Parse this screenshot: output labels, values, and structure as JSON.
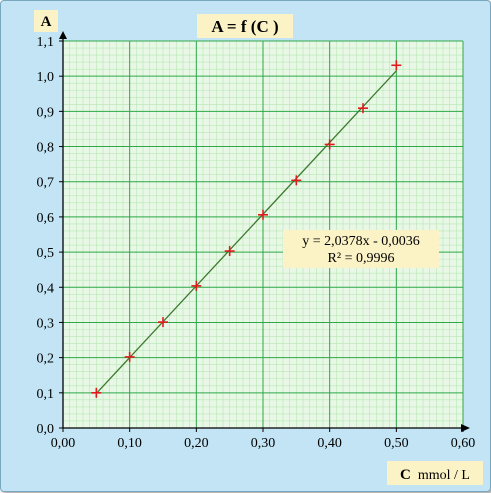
{
  "chart_data": {
    "type": "scatter",
    "title": "A = f (C )",
    "ylabel": "A",
    "xlabel_bold": "C",
    "xlabel_unit": "mmol / L",
    "xlim": [
      0.0,
      0.6
    ],
    "ylim": [
      0.0,
      1.1
    ],
    "x_ticks": [
      "0,00",
      "0,10",
      "0,20",
      "0,30",
      "0,40",
      "0,50",
      "0,60"
    ],
    "y_ticks": [
      "0,0",
      "0,1",
      "0,2",
      "0,3",
      "0,4",
      "0,5",
      "0,6",
      "0,7",
      "0,8",
      "0,9",
      "1,0",
      "1,1"
    ],
    "grid": true,
    "series": [
      {
        "x": [
          0.05,
          0.1,
          0.15,
          0.2,
          0.25,
          0.3,
          0.35,
          0.4,
          0.45,
          0.5
        ],
        "y": [
          0.1,
          0.202,
          0.301,
          0.404,
          0.503,
          0.606,
          0.704,
          0.806,
          0.909,
          1.031
        ]
      }
    ],
    "trendline": {
      "slope": 2.0378,
      "intercept": -0.0036,
      "x_range": [
        0.05,
        0.5
      ],
      "equation": "y = 2,0378x - 0,0036",
      "r2": "R² = 0,9996"
    },
    "colors": {
      "marker": "#e01b1b",
      "trendline": "#3b7a2e",
      "grid_major": "#2fa84a",
      "grid_minor": "#b7e6b5",
      "plot_bg": "#e9f8e6",
      "frame_bg": "#c3e4f4",
      "label_bg": "#fbf3c6"
    }
  }
}
